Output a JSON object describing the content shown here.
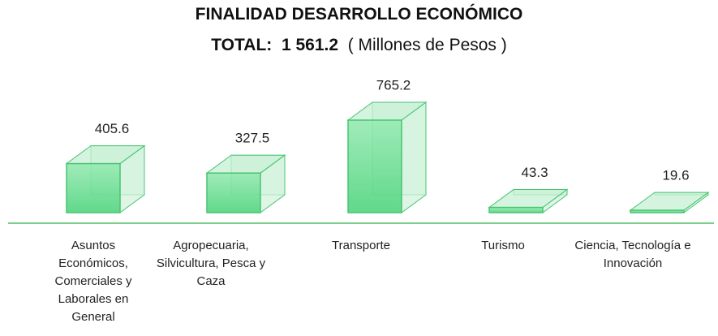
{
  "chart_data": {
    "type": "bar3d",
    "title": "FINALIDAD DESARROLLO ECONÓMICO",
    "total_label": "TOTAL:  1 561.2",
    "unit_label": "( Millones de Pesos )",
    "categories": [
      "Asuntos Económicos, Comerciales y Laborales en General",
      "Agropecuaria, Silvicultura, Pesca y Caza",
      "Transporte",
      "Turismo",
      "Ciencia, Tecnología e Innovación"
    ],
    "values": [
      405.6,
      327.5,
      765.2,
      43.3,
      19.6
    ],
    "color": "#5fdc8a"
  }
}
